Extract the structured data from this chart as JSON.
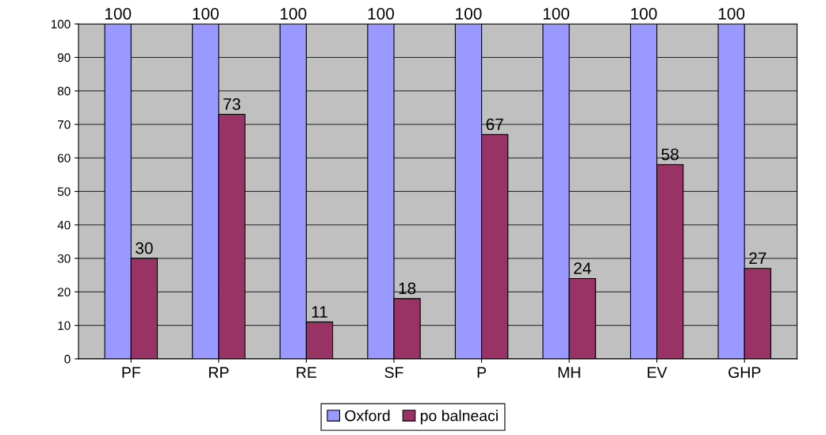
{
  "chart_data": {
    "type": "bar",
    "categories": [
      "PF",
      "RP",
      "RE",
      "SF",
      "P",
      "MH",
      "EV",
      "GHP"
    ],
    "series": [
      {
        "name": "Oxford",
        "color": "#9999ff",
        "values": [
          100,
          100,
          100,
          100,
          100,
          100,
          100,
          100
        ]
      },
      {
        "name": "po balneaci",
        "color": "#993366",
        "values": [
          30,
          73,
          11,
          18,
          67,
          24,
          58,
          27
        ]
      }
    ],
    "ylim": [
      0,
      100
    ],
    "yticks": [
      0,
      10,
      20,
      30,
      40,
      50,
      60,
      70,
      80,
      90,
      100
    ],
    "grid": "y",
    "legend": "bottom",
    "data_labels": true
  }
}
